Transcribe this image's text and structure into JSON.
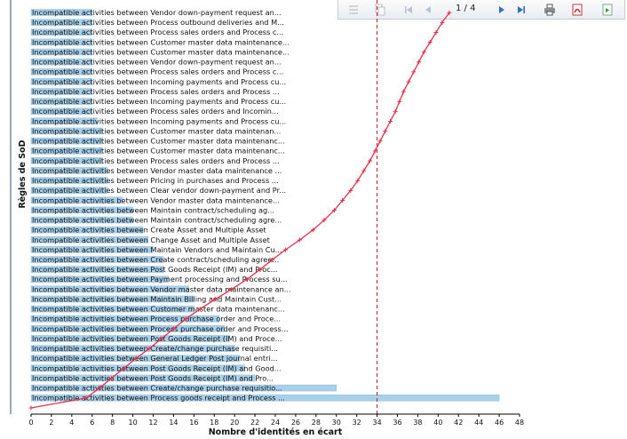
{
  "toolbar": {
    "page_indicator": "1 / 4",
    "icons": [
      "list-icon",
      "copy-icon",
      "first-page-icon",
      "previous-page-icon",
      "next-page-icon",
      "last-page-icon",
      "print-icon",
      "pdf-icon",
      "export-icon"
    ]
  },
  "colors": {
    "bar": "#a8d0ea",
    "bar_stroke": "#7fb3d6",
    "curve": "#e8304a",
    "threshold": "#c0181e"
  },
  "chart_data": {
    "type": "bar",
    "orientation": "horizontal",
    "xlabel": "Nombre d'identités en écart",
    "ylabel": "Règles de SoD",
    "xlim": [
      0,
      48
    ],
    "xticks": [
      0,
      2,
      4,
      6,
      8,
      10,
      12,
      14,
      16,
      18,
      20,
      22,
      24,
      26,
      28,
      30,
      32,
      34,
      36,
      38,
      40,
      42,
      44,
      46,
      48
    ],
    "threshold": 34,
    "categories": [
      "Incompatible activities between Process goods receipt and Process ...",
      "Incompatible activities between Create/change purchase requisitio...",
      "Incompatible activities between Post Goods Receipt (IM) and Pro...",
      "Incompatible activities between Post Goods Receipt (IM) and Good...",
      "Incompatible activities between General Ledger Post journal entri...",
      "Incompatible activities between Create/change purchase requisiti...",
      "Incompatible activities between Post Goods Receipt (IM) and Proce...",
      "Incompatible activities between Process purchase order and Process...",
      "Incompatible activities between Process purchase order and Proce...",
      "Incompatible activities between Customer master data maintenanc...",
      "Incompatible activities between Maintain Billing and Maintain Cust...",
      "Incompatible activities between Vendor master data maintenance an...",
      "Incompatible activities between Payment processing and Process su...",
      "Incompatible activities between Post Goods Receipt (IM) and Proc...",
      "Incompatible activities between Create contract/scheduling agree...",
      "Incompatible activities between Maintain Vendors and Maintain Cu...",
      "Incompatible activities between Change Asset and Multiple Asset",
      "Incompatible activities between Create Asset and Multiple Asset",
      "Incompatible activities between Maintain contract/scheduling agre...",
      "Incompatible activities between Maintain contract/scheduling ag...",
      "Incompatible activities between Vendor master data maintenance...",
      "Incompatible activities between Clear vendor down-payment and Pr...",
      "Incompatible activities between Pricing in purchases and Process ...",
      "Incompatible activities between Vendor master data maintenance ...",
      "Incompatible activities between Process sales orders and Process ...",
      "Incompatible activities between Customer master data maintenanc...",
      "Incompatible activities between Customer master data maintenanc...",
      "Incompatible activities between Customer master data maintenan...",
      "Incompatible activities between Incoming payments and Process cu...",
      "Incompatible activities between Process sales orders and Incomin...",
      "Incompatible activities between Incoming payments and Process cu...",
      "Incompatible activities between Process sales orders and Process ...",
      "Incompatible activities between Incoming payments and Process cu...",
      "Incompatible activities between Process sales orders and Process c...",
      "Incompatible activities between Vendor down-payment request an...",
      "Incompatible activities between Customer master data maintenance...",
      "Incompatible activities between Customer master data maintenance...",
      "Incompatible activities between Process sales orders and Process c...",
      "Incompatible activities between Process outbound deliveries and M...",
      "Incompatible activities between Vendor down-payment request an..."
    ],
    "values": [
      46,
      30,
      22,
      21,
      20.5,
      20,
      19.5,
      19,
      18.5,
      16,
      16,
      15.5,
      13.5,
      13,
      13,
      12,
      11.5,
      11,
      10,
      10,
      9,
      7.5,
      7.5,
      7.5,
      7,
      7,
      7,
      7,
      6.5,
      6,
      6,
      6,
      6,
      6,
      6,
      6,
      6,
      6,
      6,
      6
    ],
    "cumulative_curve": [
      0,
      5.4,
      6.7,
      7.9,
      9.1,
      10.3,
      11.6,
      12.8,
      14,
      15.2,
      16.6,
      18.1,
      19.7,
      21.2,
      22.5,
      23.7,
      25,
      26.4,
      27.7,
      28.8,
      29.8,
      30.6,
      31.4,
      32.1,
      32.7,
      33.3,
      33.8,
      34.3,
      34.8,
      35.3,
      35.8,
      36.2,
      36.6,
      37.1,
      37.6,
      38.1,
      38.6,
      39.2,
      39.8,
      40.4,
      41.1
    ]
  }
}
